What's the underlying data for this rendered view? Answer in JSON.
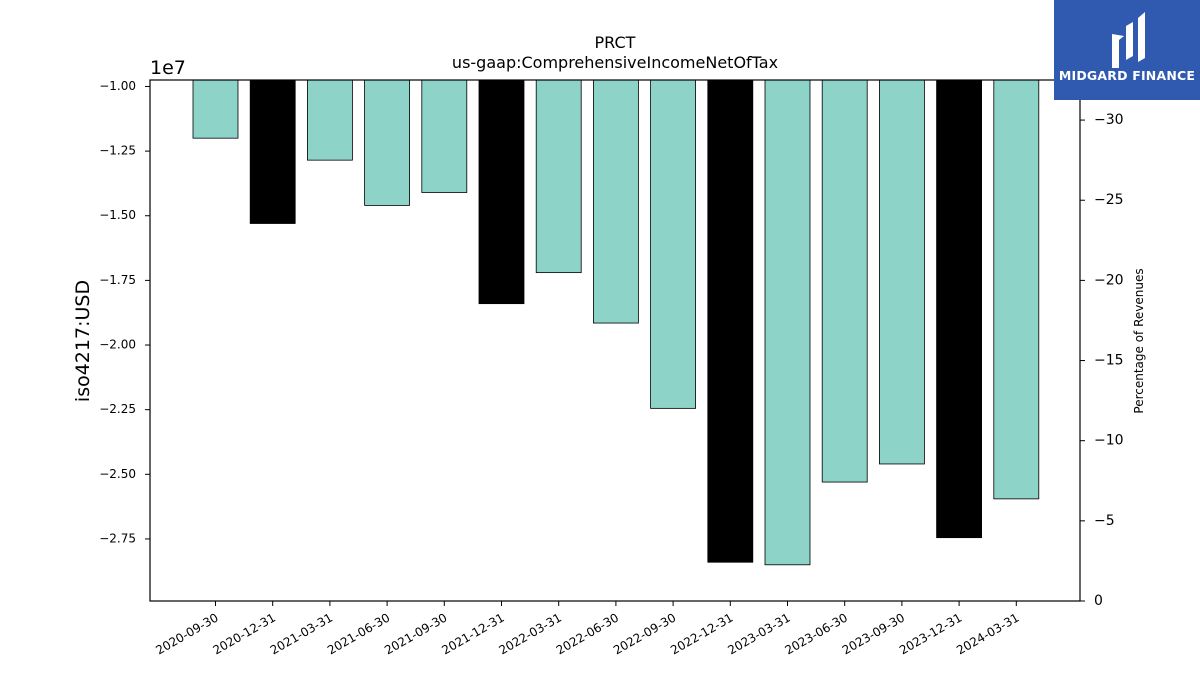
{
  "chart_data": {
    "type": "bar",
    "title": "PRCT",
    "subtitle": "us-gaap:ComprehensiveIncomeNetOfTax",
    "ylabel": "iso4217:USD",
    "y_offset_label": "1e7",
    "y2label": "Percentage of Revenues",
    "categories": [
      "2020-09-30",
      "2020-12-31",
      "2021-03-31",
      "2021-06-30",
      "2021-09-30",
      "2021-12-31",
      "2022-03-31",
      "2022-06-30",
      "2022-09-30",
      "2022-12-31",
      "2023-03-31",
      "2023-06-30",
      "2023-09-30",
      "2023-12-31",
      "2024-03-31"
    ],
    "values": [
      -12000000,
      -15300000,
      -12850000,
      -14600000,
      -14100000,
      -18400000,
      -17200000,
      -19150000,
      -22450000,
      -28400000,
      -28500000,
      -25300000,
      -24600000,
      -27450000,
      -25950000
    ],
    "bar_kinds": [
      "quarter",
      "annual",
      "quarter",
      "quarter",
      "quarter",
      "annual",
      "quarter",
      "quarter",
      "quarter",
      "annual",
      "quarter",
      "quarter",
      "quarter",
      "annual",
      "quarter"
    ],
    "ylim": [
      -9750000,
      -29900000
    ],
    "yticks": [
      -10000000,
      -12500000,
      -15000000,
      -17500000,
      -20000000,
      -22500000,
      -25000000,
      -27500000
    ],
    "ytick_labels": [
      "−1.00",
      "−1.25",
      "−1.50",
      "−1.75",
      "−2.00",
      "−2.25",
      "−2.50",
      "−2.75"
    ],
    "y2lim": [
      0,
      -32.5
    ],
    "y2ticks": [
      -30,
      -25,
      -20,
      -15,
      -10,
      -5,
      0
    ],
    "y2tick_labels": [
      "−30",
      "−25",
      "−20",
      "−15",
      "−10",
      "−5",
      "0"
    ],
    "colors": {
      "quarter": "#8dd3c7",
      "annual": "#000000"
    },
    "grid": false
  },
  "logo": {
    "text": "MIDGARD FINANCE"
  }
}
